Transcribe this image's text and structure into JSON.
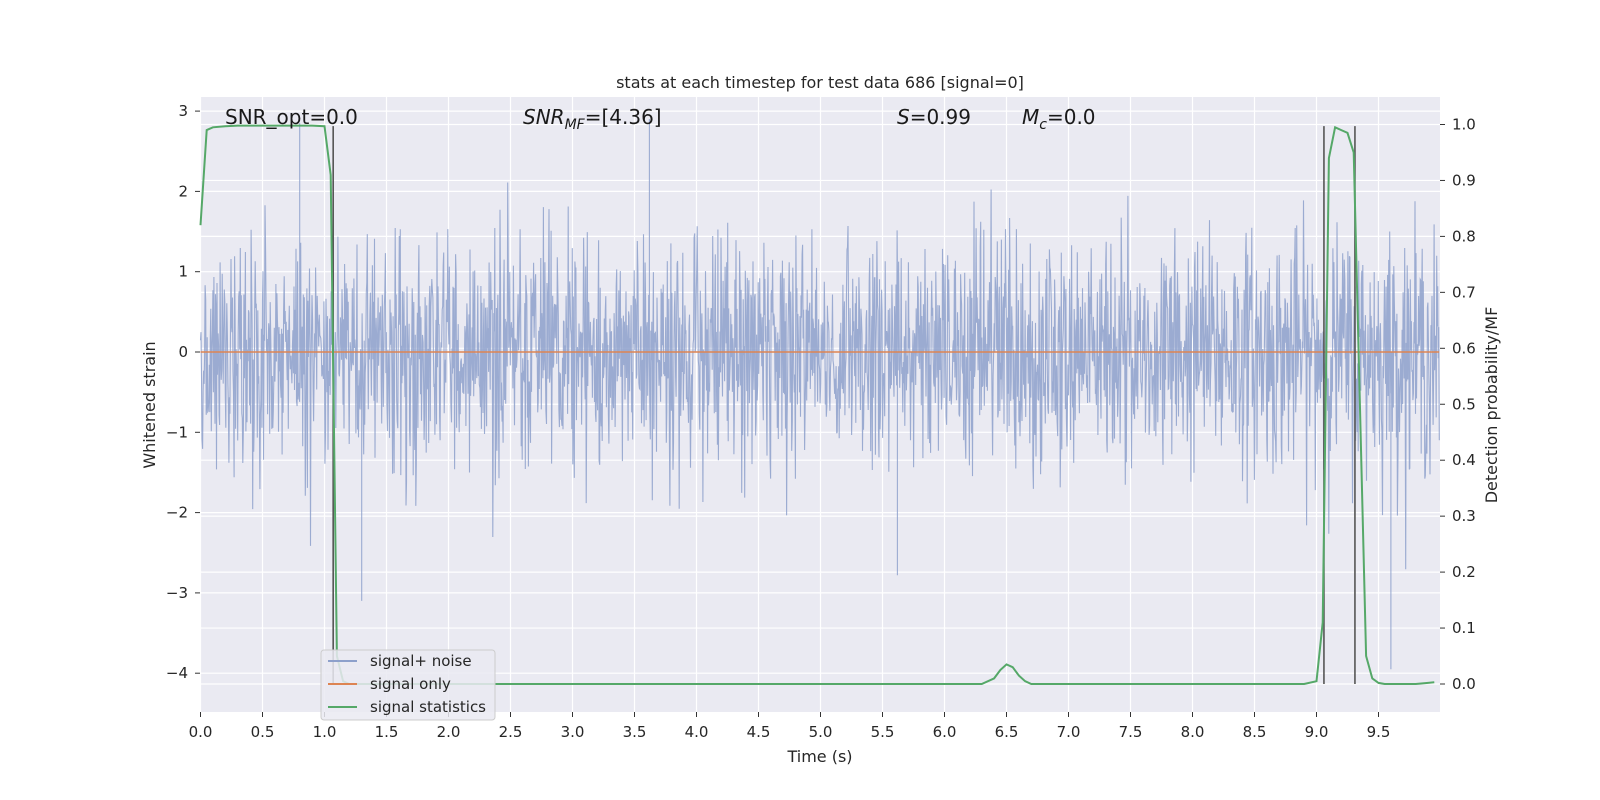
{
  "chart_data": {
    "type": "line",
    "title": "stats at each timestep for test data 686 [signal=0]",
    "xlabel": "Time (s)",
    "ylabel": "Whitened strain",
    "y2label": "Detection probability/MF",
    "xlim": [
      0,
      10
    ],
    "ylim": [
      -4.4,
      3.25
    ],
    "y2lim": [
      -0.048,
      1.045
    ],
    "x_ticks": [
      0.0,
      0.5,
      1.0,
      1.5,
      2.0,
      2.5,
      3.0,
      3.5,
      4.0,
      4.5,
      5.0,
      5.5,
      6.0,
      6.5,
      7.0,
      7.5,
      8.0,
      8.5,
      9.0,
      9.5
    ],
    "x_tick_labels": [
      "0.0",
      "0.5",
      "1.0",
      "1.5",
      "2.0",
      "2.5",
      "3.0",
      "3.5",
      "4.0",
      "4.5",
      "5.0",
      "5.5",
      "6.0",
      "6.5",
      "7.0",
      "7.5",
      "8.0",
      "8.5",
      "9.0",
      "9.5"
    ],
    "y_ticks": [
      3,
      2,
      1,
      0,
      -1,
      -2,
      -3,
      -4
    ],
    "y_tick_labels": [
      "3",
      "2",
      "1",
      "0",
      "−1",
      "−2",
      "−3",
      "−4"
    ],
    "y2_ticks": [
      1.0,
      0.9,
      0.8,
      0.7,
      0.6,
      0.5,
      0.4,
      0.3,
      0.2,
      0.1,
      0.0
    ],
    "y2_tick_labels": [
      "1.0",
      "0.9",
      "0.8",
      "0.7",
      "0.6",
      "0.5",
      "0.4",
      "0.3",
      "0.2",
      "0.1",
      "0.0"
    ],
    "grid": true,
    "legend_position": "lower-left",
    "annotations": {
      "snr_opt": "SNR_opt=0.0",
      "snr_mf_sym": "SNR",
      "snr_mf_sub": "MF",
      "snr_mf_val": "=[4.36]",
      "s_sym": "S",
      "s_val": "=0.99",
      "mc_sym": "M",
      "mc_sub": "c",
      "mc_val": "=0.0"
    },
    "series": [
      {
        "name": "signal+ noise",
        "color": "#8da0cb",
        "axis": "left",
        "description_values": "dense whitened noise, typical range about -2 to 2.3, occasional spikes to about 2.9 and -3.1"
      },
      {
        "name": "signal only",
        "color": "#dd8452",
        "axis": "left",
        "x": [
          0.0,
          9.99
        ],
        "y": [
          0.0,
          0.0
        ]
      },
      {
        "name": "signal statistics",
        "color": "#55a868",
        "axis": "right",
        "x": [
          0.0,
          0.05,
          0.1,
          0.2,
          0.3,
          0.4,
          0.5,
          0.6,
          0.7,
          0.8,
          0.9,
          1.0,
          1.05,
          1.1,
          1.15,
          1.2,
          1.3,
          1.5,
          2.0,
          3.0,
          4.0,
          5.0,
          6.0,
          6.3,
          6.4,
          6.45,
          6.5,
          6.55,
          6.6,
          6.65,
          6.7,
          7.0,
          8.0,
          8.9,
          9.0,
          9.05,
          9.1,
          9.15,
          9.2,
          9.25,
          9.3,
          9.35,
          9.4,
          9.45,
          9.5,
          9.55,
          9.6,
          9.7,
          9.8,
          9.9,
          9.95
        ],
        "y": [
          0.82,
          0.99,
          0.995,
          0.997,
          0.998,
          0.998,
          0.998,
          0.998,
          0.998,
          0.998,
          0.998,
          0.997,
          0.91,
          0.05,
          0.005,
          0.0,
          0.0,
          0.0,
          0.0,
          0.0,
          0.0,
          0.0,
          0.0,
          0.0,
          0.01,
          0.025,
          0.035,
          0.03,
          0.015,
          0.005,
          0.0,
          0.0,
          0.0,
          0.0,
          0.005,
          0.11,
          0.94,
          0.995,
          0.99,
          0.985,
          0.95,
          0.5,
          0.05,
          0.01,
          0.002,
          0.0,
          0.0,
          0.0,
          0.0,
          0.002,
          0.003
        ]
      },
      {
        "name": "",
        "color": "#555555",
        "axis": "right",
        "kind": "vlines",
        "x": [
          1.07,
          9.06,
          9.31
        ],
        "ymin": 0.0,
        "ymax": 0.997
      }
    ]
  }
}
